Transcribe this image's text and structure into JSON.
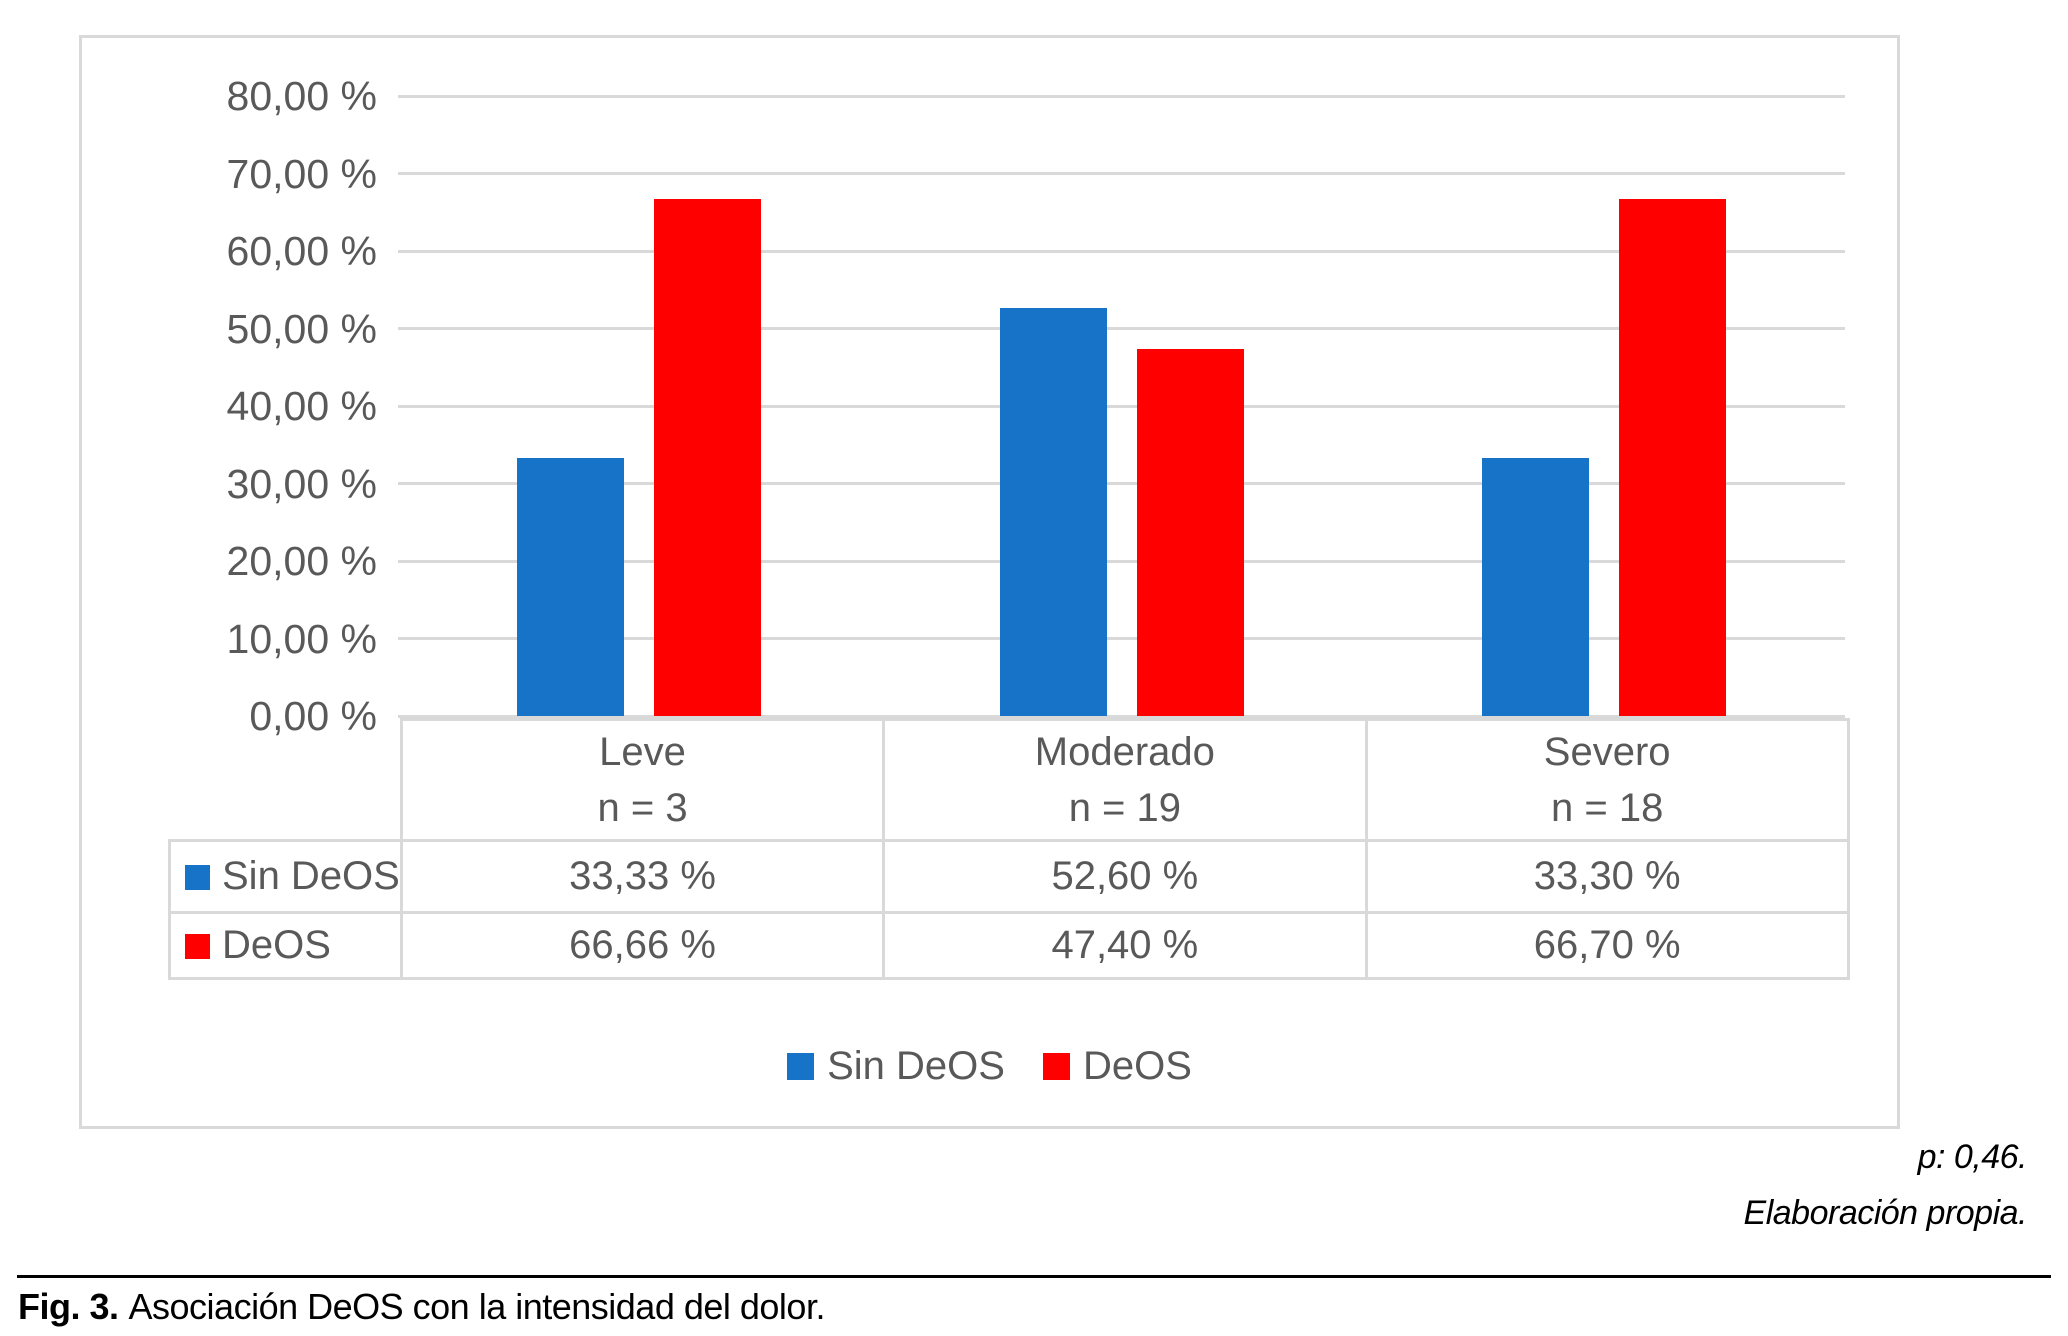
{
  "chart_data": {
    "type": "bar",
    "title": "",
    "categories": [
      {
        "label": "Leve",
        "n_label": "n = 3"
      },
      {
        "label": "Moderado",
        "n_label": "n = 19"
      },
      {
        "label": "Severo",
        "n_label": "n = 18"
      }
    ],
    "series": [
      {
        "name": "Sin DeOS",
        "color": "#1773C8",
        "values": [
          33.33,
          52.6,
          33.3
        ],
        "display_values": [
          "33,33 %",
          "52,60 %",
          "33,30 %"
        ]
      },
      {
        "name": "DeOS",
        "color": "#FF0000",
        "values": [
          66.66,
          47.4,
          66.7
        ],
        "display_values": [
          "66,66 %",
          "47,40 %",
          "66,70 %"
        ]
      }
    ],
    "y_axis": {
      "min": 0,
      "max": 80,
      "step": 10,
      "tick_labels": [
        "80,00 %",
        "70,00 %",
        "60,00 %",
        "50,00 %",
        "40,00 %",
        "30,00 %",
        "20,00 %",
        "10,00 %",
        "0,00 %"
      ]
    },
    "grid": true,
    "legend_position": "bottom",
    "legend": [
      "Sin DeOS",
      "DeOS"
    ]
  },
  "annotations": {
    "p_value": "p: 0,46.",
    "source": "Elaboración propia."
  },
  "caption": {
    "label": "Fig. 3.",
    "text": "Asociación DeOS con la intensidad del dolor."
  },
  "colors": {
    "series_blue": "#1773C8",
    "series_red": "#FF0000",
    "grid_gray": "#D9D9D9",
    "text_gray": "#595959",
    "text_black": "#000000"
  }
}
